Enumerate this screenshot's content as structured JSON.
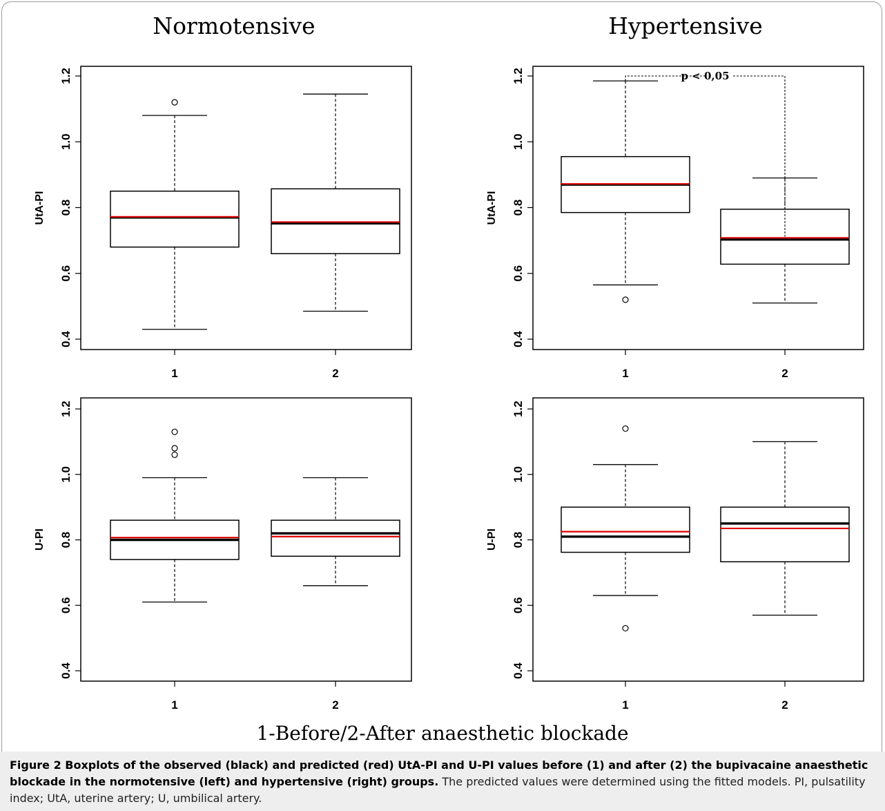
{
  "titles": {
    "left": "Normotensive",
    "right": "Hypertensive",
    "x_caption": "1-Before/2-After anaesthetic blockade"
  },
  "caption": {
    "bold": "Figure 2 Boxplots of the observed (black) and predicted (red) UtA-PI and U-PI values before (1) and after (2) the bupivacaine anaesthetic blockade in the normotensive (left) and hypertensive (right) groups.",
    "normal": " The predicted values were determined using the fitted models. PI, pulsatility index; UtA, uterine artery; U, umbilical artery."
  },
  "colors": {
    "observed_median": "#000000",
    "predicted_median": "#e00000",
    "box": "#000000"
  },
  "chart_data": [
    {
      "type": "boxplot",
      "panel": "Normotensive UtA-PI",
      "ylabel": "UtA-PI",
      "ylim": [
        0.38,
        1.24
      ],
      "yticks": [
        "0.4",
        "0.6",
        "0.8",
        "1.0",
        "1.2"
      ],
      "categories": [
        "1",
        "2"
      ],
      "boxes": [
        {
          "category": "1",
          "whisker_low": 0.43,
          "q1": 0.68,
          "median_observed": 0.77,
          "median_predicted": 0.772,
          "q3": 0.85,
          "whisker_high": 1.08,
          "outliers": [
            1.12
          ]
        },
        {
          "category": "2",
          "whisker_low": 0.485,
          "q1": 0.66,
          "median_observed": 0.752,
          "median_predicted": 0.756,
          "q3": 0.857,
          "whisker_high": 1.145,
          "outliers": []
        }
      ]
    },
    {
      "type": "boxplot",
      "panel": "Hypertensive UtA-PI",
      "ylabel": "UtA-PI",
      "ylim": [
        0.38,
        1.24
      ],
      "yticks": [
        "0.4",
        "0.6",
        "0.8",
        "1.0",
        "1.2"
      ],
      "categories": [
        "1",
        "2"
      ],
      "annotation": "p < 0,05",
      "boxes": [
        {
          "category": "1",
          "whisker_low": 0.565,
          "q1": 0.785,
          "median_observed": 0.87,
          "median_predicted": 0.872,
          "q3": 0.955,
          "whisker_high": 1.185,
          "outliers": [
            0.52
          ]
        },
        {
          "category": "2",
          "whisker_low": 0.51,
          "q1": 0.628,
          "median_observed": 0.703,
          "median_predicted": 0.708,
          "q3": 0.795,
          "whisker_high": 0.89,
          "outliers": []
        }
      ]
    },
    {
      "type": "boxplot",
      "panel": "Normotensive U-PI",
      "ylabel": "U-PI",
      "ylim": [
        0.38,
        1.24
      ],
      "yticks": [
        "0.4",
        "0.6",
        "0.8",
        "1.0",
        "1.2"
      ],
      "categories": [
        "1",
        "2"
      ],
      "boxes": [
        {
          "category": "1",
          "whisker_low": 0.61,
          "q1": 0.74,
          "median_observed": 0.8,
          "median_predicted": 0.807,
          "q3": 0.86,
          "whisker_high": 0.99,
          "outliers": [
            1.06,
            1.08,
            1.13
          ]
        },
        {
          "category": "2",
          "whisker_low": 0.66,
          "q1": 0.75,
          "median_observed": 0.82,
          "median_predicted": 0.81,
          "q3": 0.86,
          "whisker_high": 0.99,
          "outliers": []
        }
      ]
    },
    {
      "type": "boxplot",
      "panel": "Hypertensive U-PI",
      "ylabel": "U-PI",
      "ylim": [
        0.38,
        1.24
      ],
      "yticks": [
        "0.4",
        "0.6",
        "0.8",
        "1.0",
        "1.2"
      ],
      "categories": [
        "1",
        "2"
      ],
      "boxes": [
        {
          "category": "1",
          "whisker_low": 0.63,
          "q1": 0.762,
          "median_observed": 0.81,
          "median_predicted": 0.825,
          "q3": 0.9,
          "whisker_high": 1.03,
          "outliers": [
            0.53,
            1.14
          ]
        },
        {
          "category": "2",
          "whisker_low": 0.57,
          "q1": 0.733,
          "median_observed": 0.85,
          "median_predicted": 0.835,
          "q3": 0.9,
          "whisker_high": 1.1,
          "outliers": []
        }
      ]
    }
  ]
}
